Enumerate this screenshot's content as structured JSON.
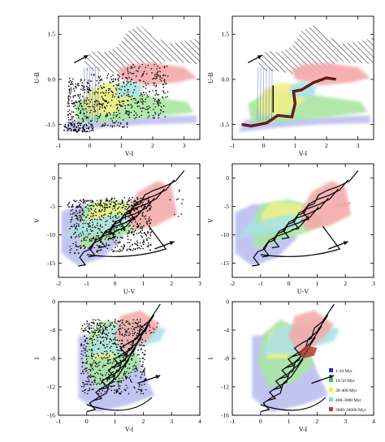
{
  "colors": {
    "age_1_10": "#2b2bd0",
    "age_10_50": "#36c936",
    "age_30_400": "#f4f02a",
    "age_400_3000": "#6fe0e6",
    "age_3000_20000": "#b63a2a",
    "blue_cloud": "#b9bdf0",
    "green_cloud": "#a9e6a1",
    "yellow_cloud": "#eef08a",
    "cyan_cloud": "#a9e2e6",
    "pink_cloud": "#f4a9a9",
    "track": "#000000",
    "red_track": "#a01616",
    "hatch": "#222222"
  },
  "legend": {
    "items": [
      {
        "label": "1-10 Myr",
        "color_key": "age_1_10"
      },
      {
        "label": "10-50 Myr",
        "color_key": "age_10_50"
      },
      {
        "label": "30-400 Myr",
        "color_key": "age_30_400"
      },
      {
        "label": "400-3000 Myr",
        "color_key": "age_400_3000"
      },
      {
        "label": "3000-20000 Myr",
        "color_key": "age_3000_20000"
      }
    ]
  },
  "chart_data": [
    {
      "panel": "top-left",
      "type": "scatter",
      "xlabel": "V-I",
      "ylabel": "U-B",
      "xlim": [
        -1,
        3.5
      ],
      "ylim": [
        2.1,
        -2.0
      ],
      "xticks": [
        -1,
        0,
        1,
        2,
        3
      ],
      "yticks": [
        -1.5,
        0.0,
        1.5
      ],
      "ytick_labels": [
        "-1.5",
        "0.0",
        "1.5"
      ],
      "arrow": {
        "from": [
          -0.5,
          0.55
        ],
        "to": [
          -0.05,
          0.8
        ]
      },
      "overlays": [
        "model clouds",
        "black points",
        "hatched region"
      ]
    },
    {
      "panel": "top-right",
      "type": "scatter",
      "xlabel": "V-I",
      "ylabel": "U-B",
      "xlim": [
        -1,
        3.5
      ],
      "ylim": [
        2.1,
        -2.0
      ],
      "xticks": [
        -1,
        0,
        1,
        2,
        3
      ],
      "yticks": [
        -1.5,
        0.0,
        1.5
      ],
      "ytick_labels": [
        "-1.5",
        "0.0",
        "1.5"
      ],
      "arrow": {
        "from": [
          -0.5,
          0.55
        ],
        "to": [
          -0.05,
          0.8
        ]
      },
      "overlays": [
        "model clouds",
        "red track",
        "hatched region"
      ]
    },
    {
      "panel": "middle-left",
      "type": "scatter",
      "xlabel": "U-V",
      "ylabel": "V",
      "xlim": [
        -2,
        3
      ],
      "ylim": [
        2.5,
        -17.5
      ],
      "xticks": [
        -2,
        -1,
        0,
        1,
        2,
        3
      ],
      "yticks": [
        -15,
        -10,
        -5,
        0
      ],
      "ytick_labels": [
        "-15",
        "-10",
        "-5",
        "0"
      ],
      "arrow": {
        "from": [
          1.4,
          -12.5
        ],
        "to": [
          2.1,
          -11.2
        ]
      },
      "overlays": [
        "model clouds",
        "black points",
        "evolutionary tracks"
      ]
    },
    {
      "panel": "middle-right",
      "type": "scatter",
      "xlabel": "U-V",
      "ylabel": "V",
      "xlim": [
        -2,
        3
      ],
      "ylim": [
        2.5,
        -17.5
      ],
      "xticks": [
        -2,
        -1,
        0,
        1,
        2,
        3
      ],
      "yticks": [
        -15,
        -10,
        -5,
        0
      ],
      "ytick_labels": [
        "-15",
        "-10",
        "-5",
        "0"
      ],
      "arrow": {
        "from": [
          1.4,
          -12.5
        ],
        "to": [
          2.1,
          -11.2
        ]
      },
      "overlays": [
        "model clouds",
        "evolutionary tracks"
      ]
    },
    {
      "panel": "bottom-left",
      "type": "scatter",
      "xlabel": "V-I",
      "ylabel": "I",
      "xlim": [
        -1,
        4
      ],
      "ylim": [
        0,
        -16
      ],
      "xticks": [
        -1,
        0,
        1,
        2,
        3,
        4
      ],
      "yticks": [
        -16,
        -12,
        -8,
        -4,
        0
      ],
      "ytick_labels": [
        "-16",
        "-12",
        "-8",
        "-4",
        "0"
      ],
      "arrow": {
        "from": [
          1.8,
          -11.5
        ],
        "to": [
          2.6,
          -10.4
        ]
      },
      "overlays": [
        "model clouds",
        "black points",
        "evolutionary tracks"
      ]
    },
    {
      "panel": "bottom-right",
      "type": "scatter",
      "xlabel": "V-I",
      "ylabel": "I",
      "xlim": [
        -1,
        4
      ],
      "ylim": [
        0,
        -16
      ],
      "xticks": [
        -1,
        0,
        1,
        2,
        3,
        4
      ],
      "yticks": [
        -16,
        -12,
        -8,
        -4,
        0
      ],
      "ytick_labels": [
        "-16",
        "-12",
        "-8",
        "-4",
        "0"
      ],
      "arrow": {
        "from": [
          1.8,
          -11.5
        ],
        "to": [
          2.6,
          -10.4
        ]
      },
      "overlays": [
        "model clouds",
        "evolutionary tracks",
        "legend"
      ]
    }
  ]
}
